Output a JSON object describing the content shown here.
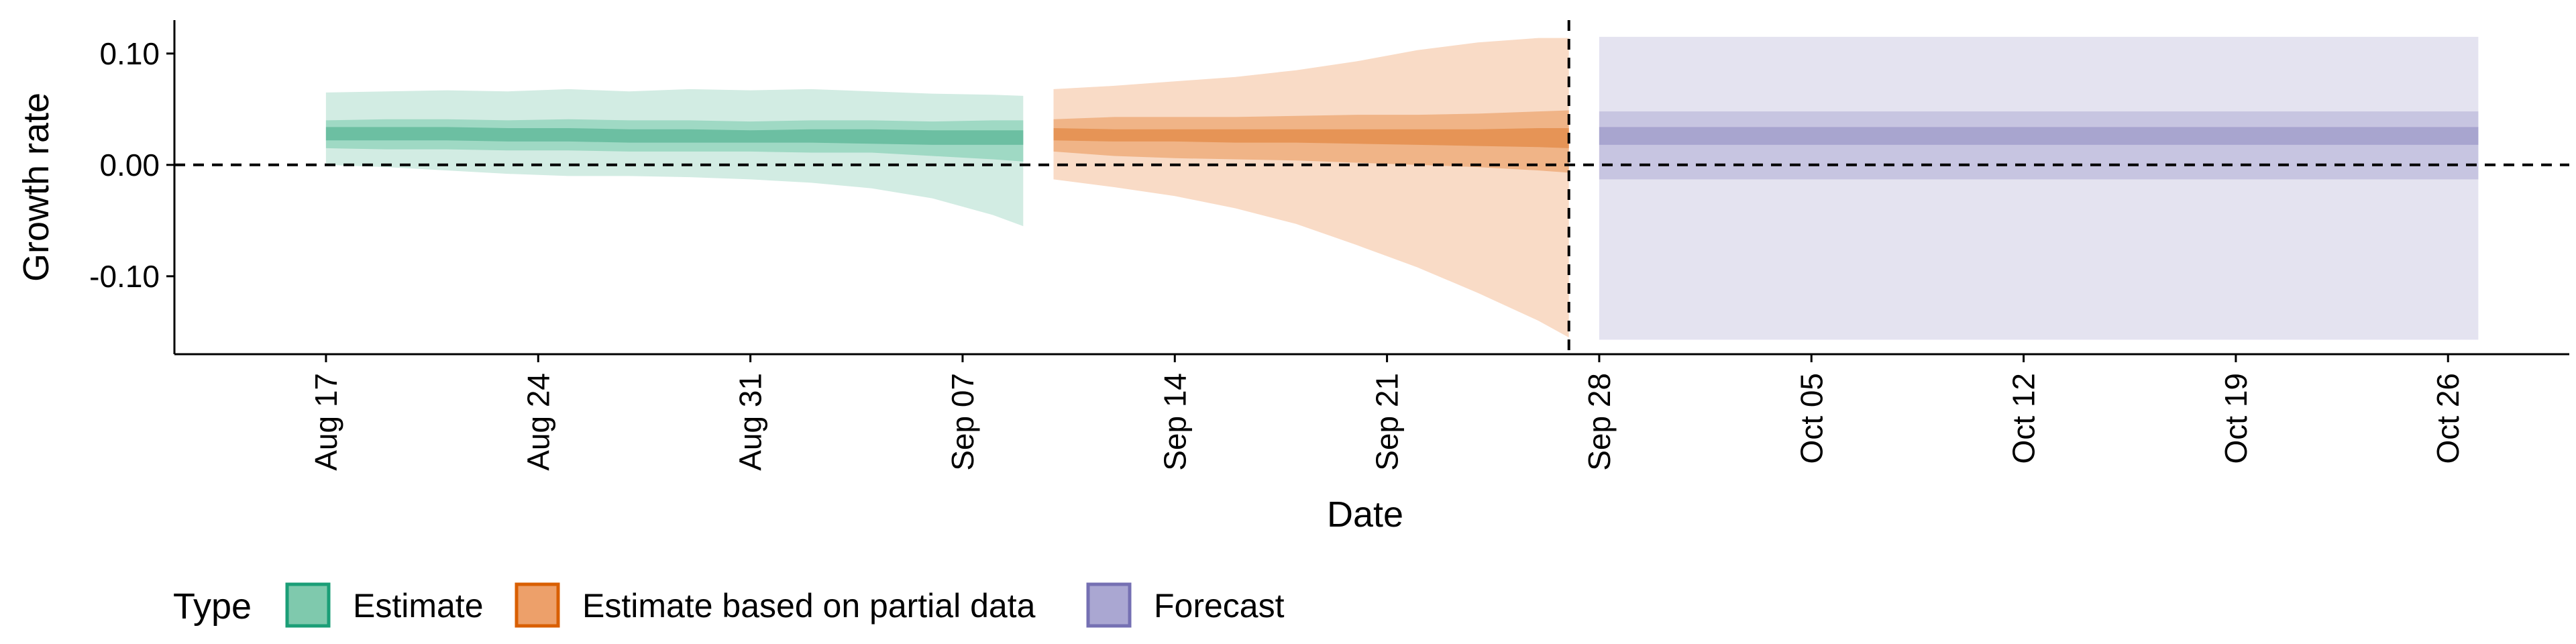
{
  "chart_data": {
    "type": "area",
    "xlabel": "Date",
    "ylabel": "Growth rate",
    "xlim": [
      "2020-08-12",
      "2020-10-30"
    ],
    "ylim": [
      -0.17,
      0.13
    ],
    "y_ticks": [
      {
        "value": -0.1,
        "label": "-0.10"
      },
      {
        "value": 0.0,
        "label": "0.00"
      },
      {
        "value": 0.1,
        "label": "0.10"
      }
    ],
    "x_ticks": [
      {
        "value": "2020-08-17",
        "label": "Aug 17"
      },
      {
        "value": "2020-08-24",
        "label": "Aug 24"
      },
      {
        "value": "2020-08-31",
        "label": "Aug 31"
      },
      {
        "value": "2020-09-07",
        "label": "Sep 07"
      },
      {
        "value": "2020-09-14",
        "label": "Sep 14"
      },
      {
        "value": "2020-09-21",
        "label": "Sep 21"
      },
      {
        "value": "2020-09-28",
        "label": "Sep 28"
      },
      {
        "value": "2020-10-05",
        "label": "Oct 05"
      },
      {
        "value": "2020-10-12",
        "label": "Oct 12"
      },
      {
        "value": "2020-10-19",
        "label": "Oct 19"
      },
      {
        "value": "2020-10-26",
        "label": "Oct 26"
      }
    ],
    "reference_lines": {
      "horizontal_y": 0.0,
      "vertical_x": "2020-09-27"
    },
    "grid": false,
    "legend": {
      "title": "Type",
      "placement": "bottom-left",
      "entries": [
        {
          "label": "Estimate",
          "fill": "#7fc9ad",
          "stroke": "#1b9e77"
        },
        {
          "label": "Estimate based on partial data",
          "fill": "#eda06a",
          "stroke": "#d95f02"
        },
        {
          "label": "Forecast",
          "fill": "#aaa7d2",
          "stroke": "#7570b3"
        }
      ]
    },
    "series": [
      {
        "name": "Estimate",
        "colors": {
          "outer": "#d2ece3",
          "mid": "#9fd9c4",
          "inner": "#6cbfa2"
        },
        "x": [
          "2020-08-17",
          "2020-08-19",
          "2020-08-21",
          "2020-08-23",
          "2020-08-25",
          "2020-08-27",
          "2020-08-29",
          "2020-08-31",
          "2020-09-02",
          "2020-09-04",
          "2020-09-06",
          "2020-09-08",
          "2020-09-09"
        ],
        "outer_upper": [
          0.065,
          0.066,
          0.067,
          0.066,
          0.068,
          0.066,
          0.068,
          0.067,
          0.068,
          0.066,
          0.064,
          0.063,
          0.062
        ],
        "outer_lower": [
          0.0,
          -0.002,
          -0.005,
          -0.008,
          -0.01,
          -0.01,
          -0.011,
          -0.013,
          -0.016,
          -0.021,
          -0.03,
          -0.045,
          -0.055
        ],
        "mid_upper": [
          0.04,
          0.041,
          0.041,
          0.04,
          0.041,
          0.04,
          0.04,
          0.039,
          0.04,
          0.04,
          0.039,
          0.04,
          0.04
        ],
        "mid_lower": [
          0.015,
          0.014,
          0.014,
          0.013,
          0.013,
          0.012,
          0.012,
          0.012,
          0.011,
          0.011,
          0.008,
          0.005,
          0.003
        ],
        "inner_upper": [
          0.034,
          0.034,
          0.034,
          0.033,
          0.033,
          0.032,
          0.032,
          0.031,
          0.032,
          0.032,
          0.031,
          0.031,
          0.031
        ],
        "inner_lower": [
          0.022,
          0.022,
          0.022,
          0.021,
          0.021,
          0.02,
          0.02,
          0.02,
          0.02,
          0.019,
          0.018,
          0.018,
          0.018
        ]
      },
      {
        "name": "Estimate based on partial data",
        "colors": {
          "outer": "#f9dbc6",
          "mid": "#f0b487",
          "inner": "#e69456"
        },
        "x": [
          "2020-09-10",
          "2020-09-12",
          "2020-09-14",
          "2020-09-16",
          "2020-09-18",
          "2020-09-20",
          "2020-09-22",
          "2020-09-24",
          "2020-09-26",
          "2020-09-27"
        ],
        "outer_upper": [
          0.068,
          0.071,
          0.075,
          0.079,
          0.085,
          0.093,
          0.103,
          0.11,
          0.114,
          0.114
        ],
        "outer_lower": [
          -0.013,
          -0.02,
          -0.028,
          -0.039,
          -0.053,
          -0.072,
          -0.092,
          -0.115,
          -0.14,
          -0.155
        ],
        "mid_upper": [
          0.041,
          0.043,
          0.043,
          0.043,
          0.044,
          0.045,
          0.045,
          0.046,
          0.048,
          0.049
        ],
        "mid_lower": [
          0.012,
          0.008,
          0.006,
          0.005,
          0.004,
          0.002,
          0.0,
          -0.002,
          -0.005,
          -0.007
        ],
        "inner_upper": [
          0.033,
          0.032,
          0.032,
          0.032,
          0.032,
          0.032,
          0.032,
          0.032,
          0.033,
          0.033
        ],
        "inner_lower": [
          0.022,
          0.021,
          0.021,
          0.02,
          0.02,
          0.019,
          0.018,
          0.017,
          0.016,
          0.015
        ]
      },
      {
        "name": "Forecast",
        "colors": {
          "outer": "#e4e3f0",
          "mid": "#c7c5e1",
          "inner": "#a8a5cf"
        },
        "x": [
          "2020-09-28",
          "2020-10-27"
        ],
        "outer_upper": [
          0.115,
          0.115
        ],
        "outer_lower": [
          -0.157,
          -0.157
        ],
        "mid_upper": [
          0.048,
          0.048
        ],
        "mid_lower": [
          -0.013,
          -0.013
        ],
        "inner_upper": [
          0.034,
          0.034
        ],
        "inner_lower": [
          0.018,
          0.018
        ]
      }
    ]
  }
}
